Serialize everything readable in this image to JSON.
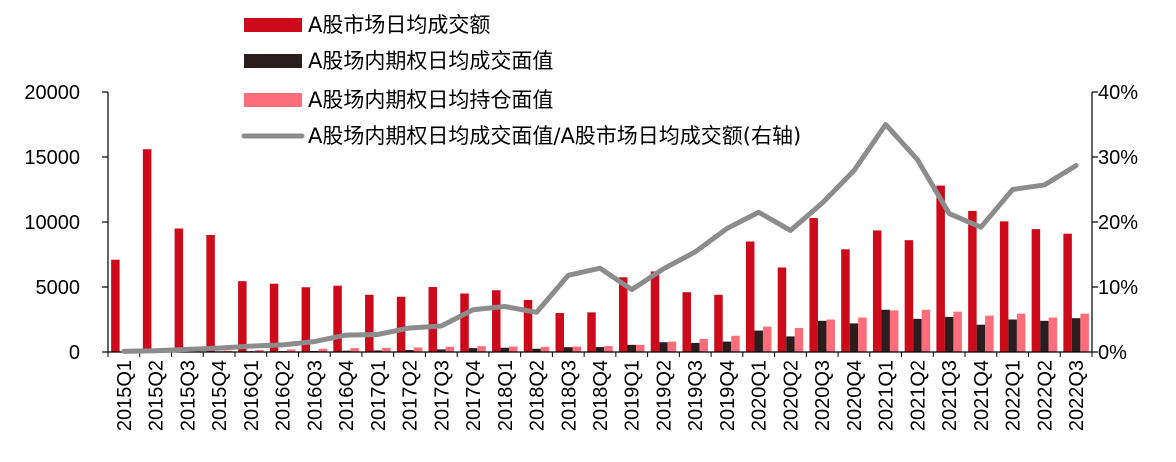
{
  "chart_data": {
    "type": "bar",
    "categories": [
      "2015Q1",
      "2015Q2",
      "2015Q3",
      "2015Q4",
      "2016Q1",
      "2016Q2",
      "2016Q3",
      "2016Q4",
      "2017Q1",
      "2017Q2",
      "2017Q3",
      "2017Q4",
      "2018Q1",
      "2018Q2",
      "2018Q3",
      "2018Q4",
      "2019Q1",
      "2019Q2",
      "2019Q3",
      "2019Q4",
      "2020Q1",
      "2020Q2",
      "2020Q3",
      "2020Q4",
      "2021Q1",
      "2021Q2",
      "2021Q3",
      "2021Q4",
      "2022Q1",
      "2022Q2",
      "2022Q3"
    ],
    "series": [
      {
        "name": "A股市场日均成交额",
        "type": "bar",
        "axis": "left",
        "color": "#cc0a1a",
        "values": [
          7100,
          15600,
          9500,
          9000,
          5450,
          5250,
          4980,
          5100,
          4400,
          4250,
          5000,
          4500,
          4750,
          4000,
          3000,
          3050,
          5750,
          6200,
          4600,
          4400,
          8500,
          6500,
          10300,
          7900,
          9350,
          8600,
          12800,
          10850,
          10050,
          9450,
          9100
        ]
      },
      {
        "name": "A股场内期权日均成交面值",
        "type": "bar",
        "axis": "left",
        "color": "#2b1d1d",
        "values": [
          5,
          25,
          40,
          50,
          60,
          70,
          80,
          100,
          120,
          150,
          200,
          300,
          330,
          250,
          370,
          380,
          550,
          750,
          700,
          800,
          1650,
          1200,
          2400,
          2200,
          3250,
          2550,
          2700,
          2100,
          2500,
          2400,
          2600
        ]
      },
      {
        "name": "A股场内期权日均持仓面值",
        "type": "bar",
        "axis": "left",
        "color": "#ff6c7a",
        "values": [
          20,
          50,
          80,
          100,
          150,
          200,
          250,
          300,
          320,
          350,
          400,
          450,
          420,
          400,
          420,
          450,
          550,
          800,
          1000,
          1250,
          1950,
          1850,
          2500,
          2650,
          3200,
          3250,
          3100,
          2800,
          2950,
          2650,
          2950
        ]
      },
      {
        "name": "A股场内期权日均成交面值/A股市场日均成交额(右轴)",
        "type": "line",
        "axis": "right",
        "color": "#8c8c8c",
        "values": [
          0.1,
          0.2,
          0.4,
          0.6,
          0.9,
          1.1,
          1.6,
          2.6,
          2.7,
          3.7,
          4.0,
          6.5,
          7.0,
          6.1,
          11.8,
          12.9,
          9.6,
          12.8,
          15.4,
          19.0,
          21.5,
          18.7,
          22.9,
          27.9,
          35.0,
          29.6,
          21.3,
          19.2,
          25.0,
          25.7,
          28.7
        ]
      }
    ],
    "y_left": {
      "min": 0,
      "max": 20000,
      "ticks": [
        "0",
        "5000",
        "10000",
        "15000",
        "20000"
      ]
    },
    "y_right": {
      "min": 0,
      "max": 40,
      "ticks": [
        "0%",
        "10%",
        "20%",
        "30%",
        "40%"
      ]
    },
    "title": "",
    "xlabel": "",
    "ylabel": "",
    "legend": "top-left",
    "grid": false
  }
}
